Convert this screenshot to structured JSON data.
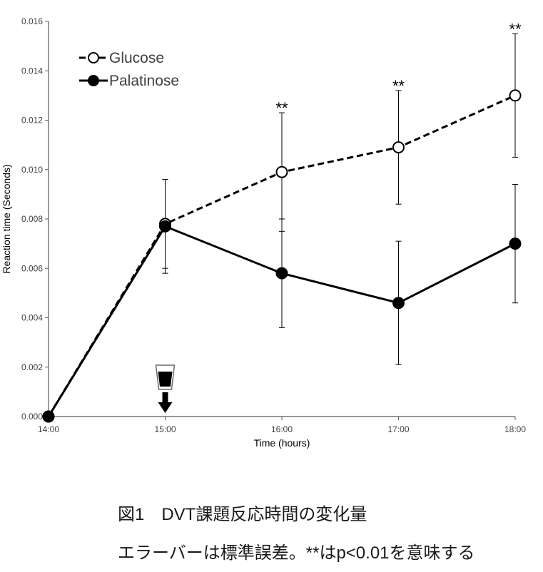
{
  "chart_data": {
    "type": "line",
    "categories": [
      "14:00",
      "15:00",
      "16:00",
      "17:00",
      "18:00"
    ],
    "series": [
      {
        "name": "Glucose",
        "values": [
          0.0,
          0.0078,
          0.0099,
          0.0109,
          0.013
        ],
        "error": [
          0.0,
          0.0018,
          0.0024,
          0.0023,
          0.0025
        ],
        "dashed": true,
        "marker_filled": false
      },
      {
        "name": "Palatinose",
        "values": [
          0.0,
          0.0077,
          0.0058,
          0.0046,
          0.007
        ],
        "error": [
          0.0,
          0.0019,
          0.0022,
          0.0025,
          0.0024
        ],
        "dashed": false,
        "marker_filled": true
      }
    ],
    "xlabel": "Time (hours)",
    "ylabel": "Reaction time (Seconds)",
    "ylim": [
      0,
      0.016
    ],
    "yticks": [
      0,
      0.002,
      0.004,
      0.006,
      0.008,
      0.01,
      0.012,
      0.014,
      0.016
    ],
    "ytick_labels": [
      "0.000",
      "0.002",
      "0.004",
      "0.006",
      "0.008",
      "0.010",
      "0.012",
      "0.014",
      "0.016"
    ],
    "grid": false,
    "legend": "top-left",
    "significance_marks": [
      "",
      "",
      "**",
      "**",
      "**"
    ],
    "event_marker": {
      "category_index": 1,
      "icons": [
        "drink-cup-icon",
        "down-arrow-icon"
      ]
    }
  },
  "caption": {
    "figure_title": "図1　DVT課題反応時間の変化量",
    "note": "エラーバーは標準誤差。**はp<0.01を意味する"
  },
  "colors": {
    "axis": "#595959",
    "series": "#000000",
    "background": "#ffffff",
    "cup_outline": "#6b6b6b"
  }
}
